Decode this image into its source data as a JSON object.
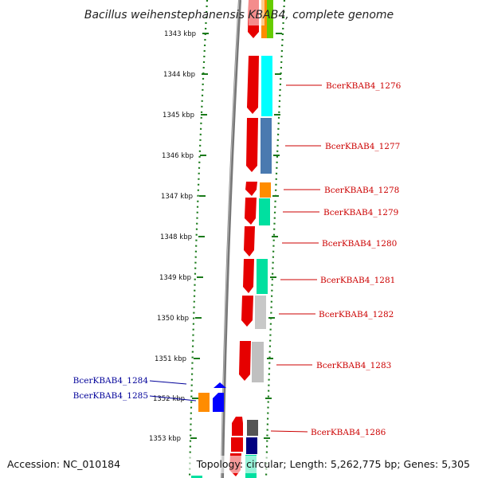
{
  "title": "Bacillus weihenstephanensis KBAB4, complete genome",
  "footer": {
    "accession": "Accession: NC_010184",
    "stats": "Topology: circular; Length: 5,262,775 bp; Genes: 5,305"
  },
  "colors": {
    "forward_label": "#cc0000",
    "reverse_label": "#000099",
    "backbone": "#888888",
    "tick": "#1a7a1a"
  },
  "ticks": [
    "1343 kbp",
    "1344 kbp",
    "1345 kbp",
    "1346 kbp",
    "1347 kbp",
    "1348 kbp",
    "1349 kbp",
    "1350 kbp",
    "1351 kbp",
    "1352 kbp",
    "1353 kbp"
  ],
  "gene_labels": [
    {
      "text": "BcerKBAB4_1276",
      "strand": "forward"
    },
    {
      "text": "BcerKBAB4_1277",
      "strand": "forward"
    },
    {
      "text": "BcerKBAB4_1278",
      "strand": "forward"
    },
    {
      "text": "BcerKBAB4_1279",
      "strand": "forward"
    },
    {
      "text": "BcerKBAB4_1280",
      "strand": "forward"
    },
    {
      "text": "BcerKBAB4_1281",
      "strand": "forward"
    },
    {
      "text": "BcerKBAB4_1282",
      "strand": "forward"
    },
    {
      "text": "BcerKBAB4_1283",
      "strand": "forward"
    },
    {
      "text": "BcerKBAB4_1284",
      "strand": "reverse"
    },
    {
      "text": "BcerKBAB4_1285",
      "strand": "reverse"
    },
    {
      "text": "BcerKBAB4_1286",
      "strand": "forward"
    }
  ]
}
